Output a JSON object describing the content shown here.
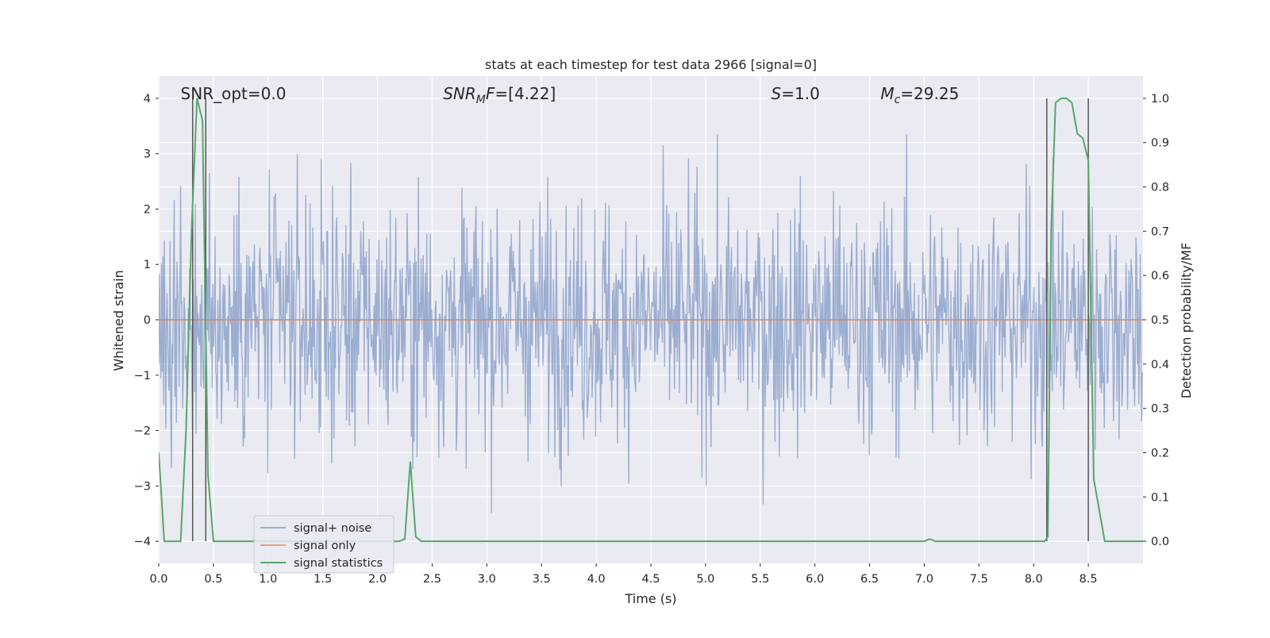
{
  "chart_data": {
    "type": "line",
    "title": "stats at each timestep for test data 2966 [signal=0]",
    "xlabel": "Time (s)",
    "ylabel_left": "Whitened strain",
    "ylabel_right": "Detection probability/MF",
    "xlim": [
      0.0,
      9.0
    ],
    "ylim_left": [
      -4.4,
      4.4
    ],
    "ylim_right": [
      -0.05,
      1.05
    ],
    "x_ticks": [
      0.0,
      0.5,
      1.0,
      1.5,
      2.0,
      2.5,
      3.0,
      3.5,
      4.0,
      4.5,
      5.0,
      5.5,
      6.0,
      6.5,
      7.0,
      7.5,
      8.0,
      8.5
    ],
    "x_tick_labels": [
      "0.0",
      "0.5",
      "1.0",
      "1.5",
      "2.0",
      "2.5",
      "3.0",
      "3.5",
      "4.0",
      "4.5",
      "5.0",
      "5.5",
      "6.0",
      "6.5",
      "7.0",
      "7.5",
      "8.0",
      "8.5"
    ],
    "y_ticks_left": [
      -4,
      -3,
      -2,
      -1,
      0,
      1,
      2,
      3,
      4
    ],
    "y_tick_labels_left": [
      "−4",
      "−3",
      "−2",
      "−1",
      "0",
      "1",
      "2",
      "3",
      "4"
    ],
    "y_ticks_right": [
      0.0,
      0.1,
      0.2,
      0.3,
      0.4,
      0.5,
      0.6,
      0.7,
      0.8,
      0.9,
      1.0
    ],
    "y_tick_labels_right": [
      "0.0",
      "0.1",
      "0.2",
      "0.3",
      "0.4",
      "0.5",
      "0.6",
      "0.7",
      "0.8",
      "0.9",
      "1.0"
    ],
    "grid": true,
    "legend_position": "lower-left",
    "colors": {
      "background": "#eaeaf2",
      "grid": "#ffffff",
      "noise": "#4c72b0",
      "signal": "#dd8452",
      "stats": "#55a868",
      "marker_lines": "#555555"
    },
    "annotations": [
      {
        "text": "SNR_opt=0.0",
        "x": 0.2,
        "y": 4.0
      },
      {
        "text": "SNR_MF=[4.22]",
        "x": 2.6,
        "y": 4.0
      },
      {
        "text": "S=1.0",
        "x": 5.6,
        "y": 4.0
      },
      {
        "text": "M_c=29.25",
        "x": 6.6,
        "y": 4.0
      }
    ],
    "vertical_lines_x": [
      0.31,
      0.43,
      8.12,
      8.5
    ],
    "series": [
      {
        "name": "signal+ noise",
        "axis": "left",
        "style": "noise",
        "x_range": [
          0.0,
          9.0
        ],
        "typical_amplitude": 1.3,
        "max": 3.35,
        "min": -3.95
      },
      {
        "name": "signal only",
        "axis": "left",
        "x": [
          0.0,
          9.0
        ],
        "y": [
          0.0,
          0.0
        ]
      },
      {
        "name": "signal statistics",
        "axis": "right",
        "x": [
          0.0,
          0.05,
          0.2,
          0.25,
          0.3,
          0.35,
          0.4,
          0.45,
          0.5,
          0.55,
          0.6,
          1.0,
          2.2,
          2.25,
          2.3,
          2.35,
          2.4,
          2.45,
          3.0,
          7.0,
          7.05,
          7.1,
          7.3,
          7.5,
          8.0,
          8.1,
          8.13,
          8.16,
          8.2,
          8.25,
          8.3,
          8.35,
          8.4,
          8.45,
          8.5,
          8.55,
          8.6,
          8.65,
          8.7,
          8.8,
          9.0
        ],
        "y": [
          0.2,
          0.0,
          0.0,
          0.25,
          0.7,
          1.0,
          0.95,
          0.15,
          0.0,
          0.0,
          0.0,
          0.0,
          0.0,
          0.005,
          0.18,
          0.01,
          0.0,
          0.0,
          0.0,
          0.0,
          0.005,
          0.0,
          0.0,
          0.0,
          0.0,
          0.0,
          0.01,
          0.7,
          0.99,
          1.0,
          1.0,
          0.99,
          0.92,
          0.91,
          0.86,
          0.14,
          0.07,
          0.0,
          0.0,
          0.0,
          0.0
        ]
      }
    ]
  }
}
